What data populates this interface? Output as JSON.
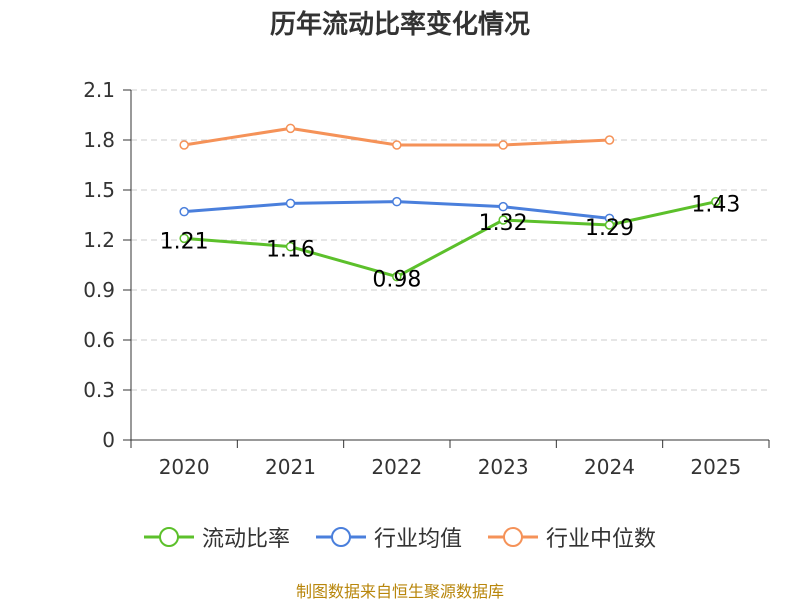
{
  "chart_data": {
    "type": "line",
    "title": "历年流动比率变化情况",
    "categories": [
      "2020",
      "2021",
      "2022",
      "2023",
      "2024",
      "2025"
    ],
    "y_ticks": [
      "0",
      "0.3",
      "0.6",
      "0.9",
      "1.2",
      "1.5",
      "1.8",
      "2.1"
    ],
    "ylim": [
      0,
      2.1
    ],
    "grid": true,
    "legend_position": "bottom",
    "series": [
      {
        "name": "流动比率",
        "color": "#5cc02b",
        "values": [
          1.21,
          1.16,
          0.98,
          1.32,
          1.29,
          1.43
        ],
        "labels": [
          "1.21",
          "1.16",
          "0.98",
          "1.32",
          "1.29",
          "1.43"
        ]
      },
      {
        "name": "行业均值",
        "color": "#4a7fdc",
        "values": [
          1.37,
          1.42,
          1.43,
          1.4,
          1.33,
          null
        ]
      },
      {
        "name": "行业中位数",
        "color": "#f59258",
        "values": [
          1.77,
          1.87,
          1.77,
          1.77,
          1.8,
          null
        ]
      }
    ]
  },
  "source_note": "制图数据来自恒生聚源数据库"
}
